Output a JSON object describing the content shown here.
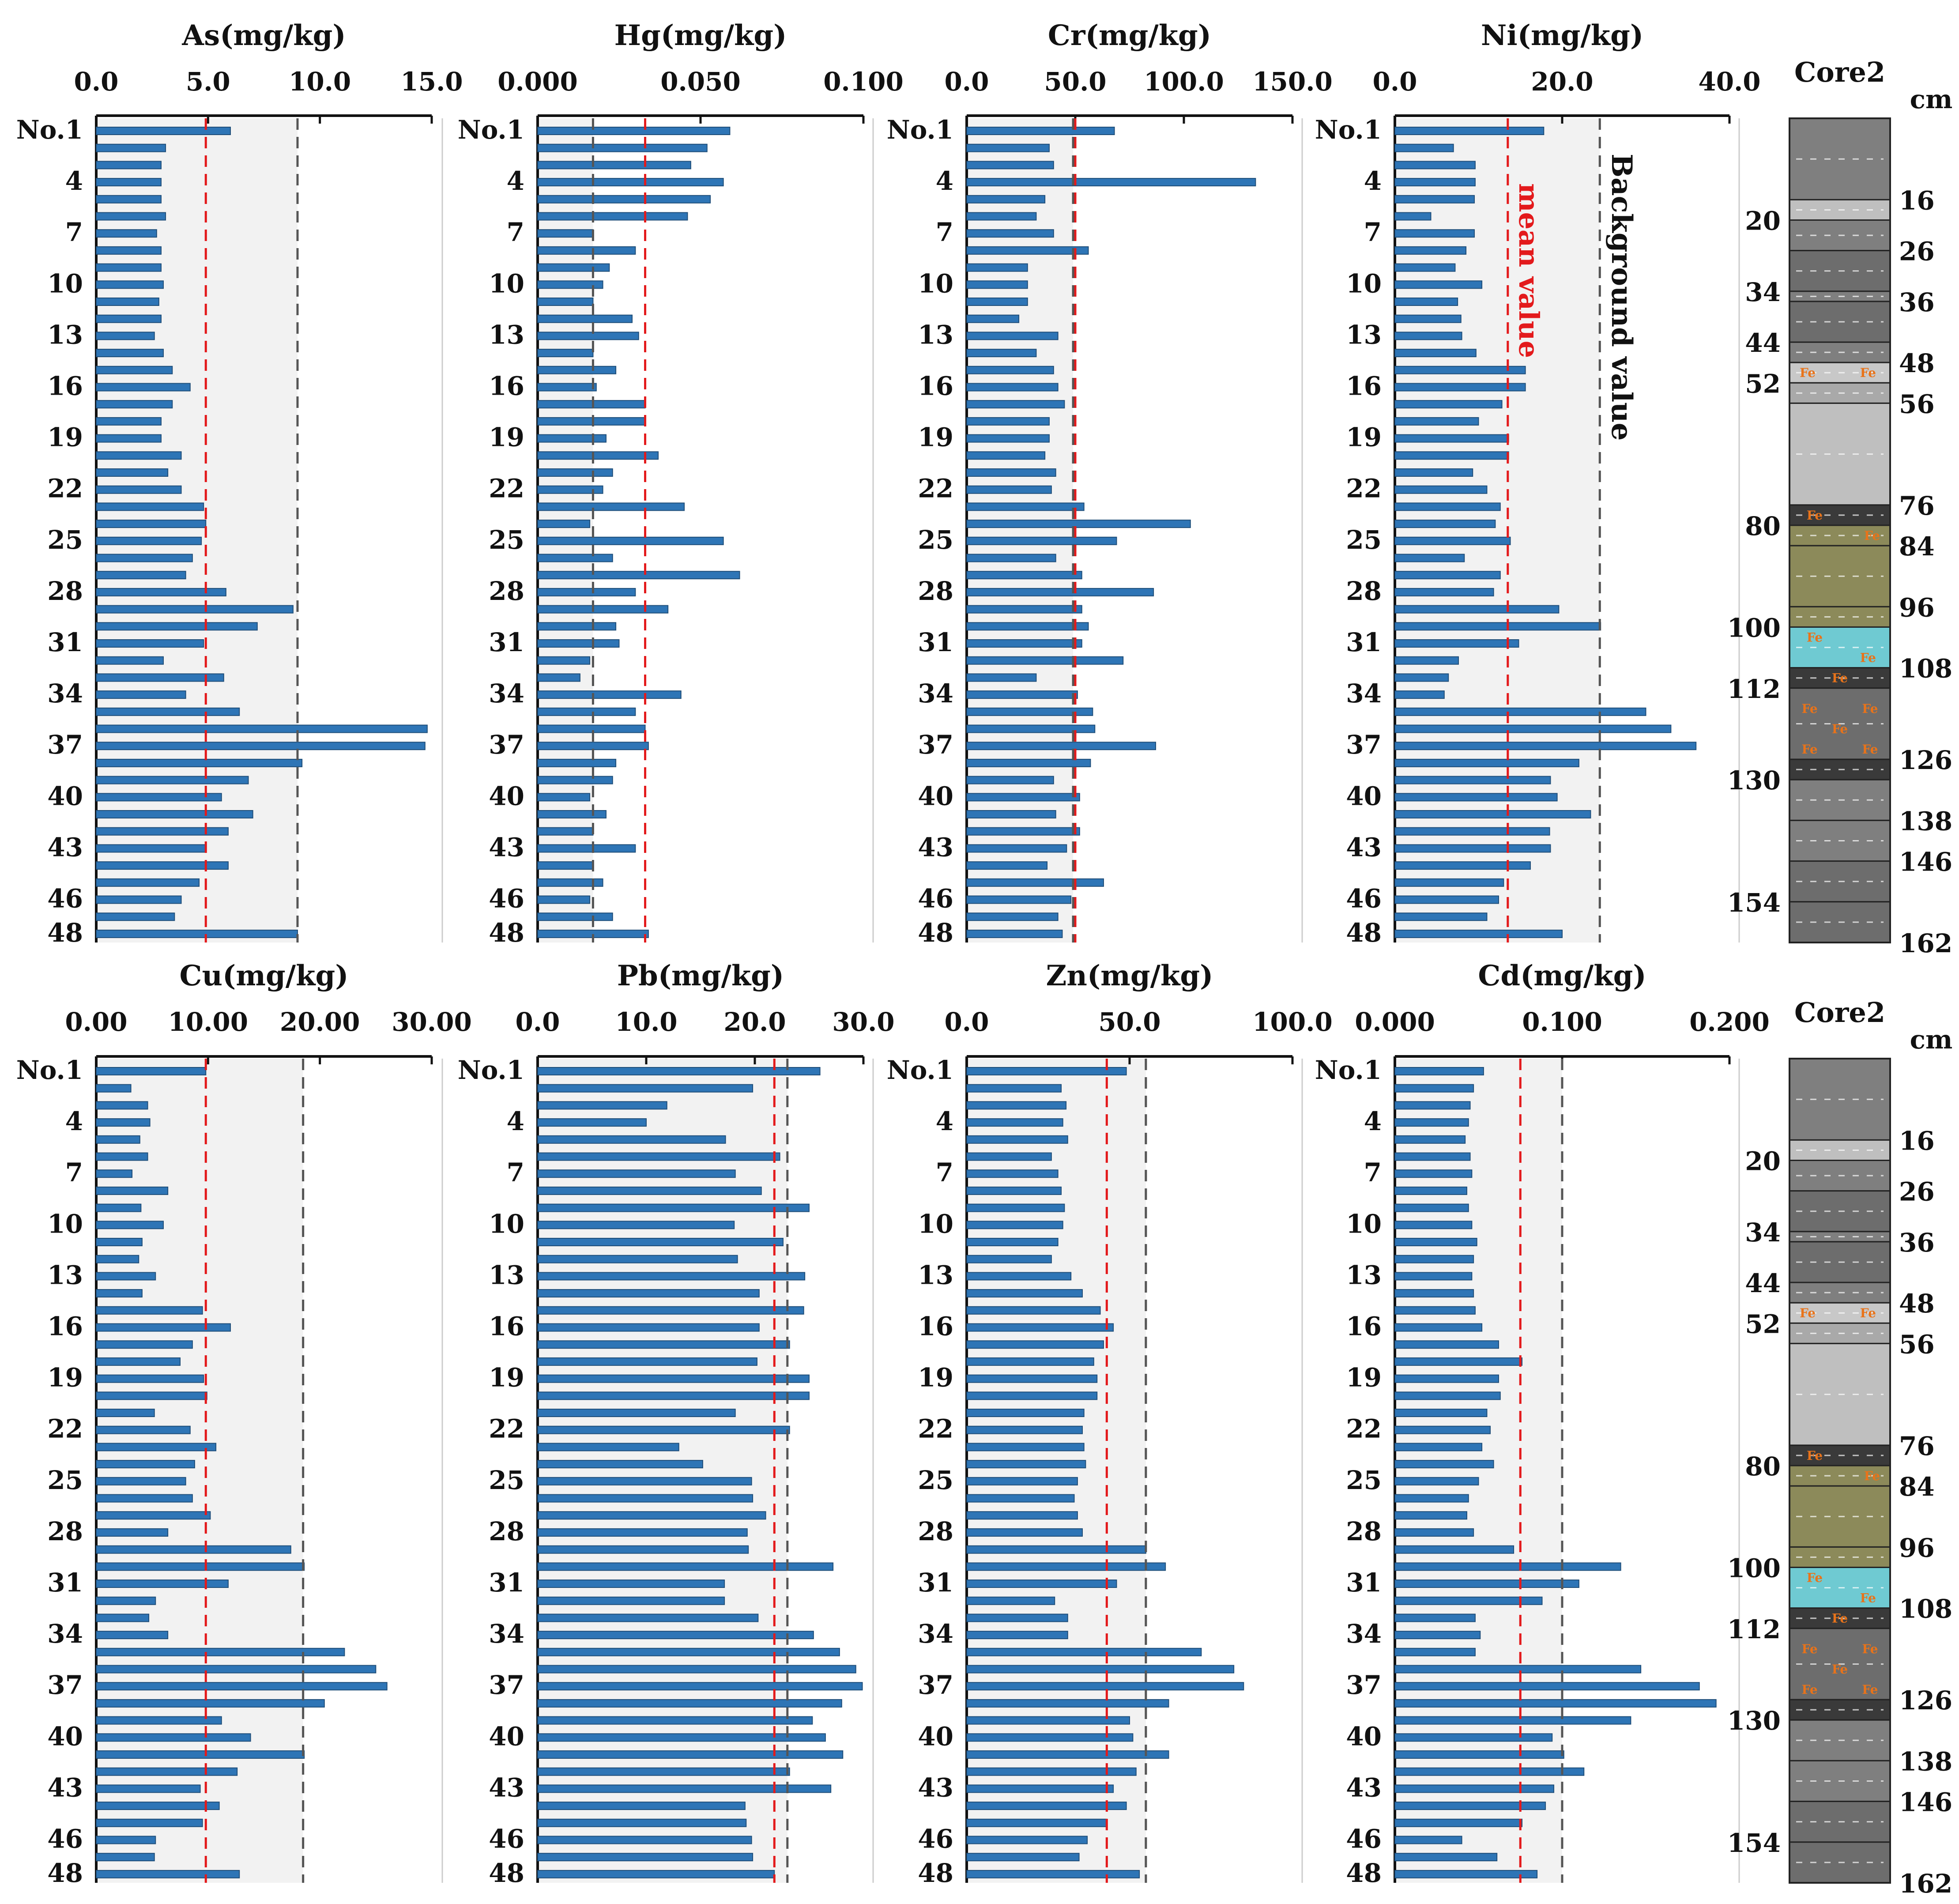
{
  "core_label": "Core2",
  "depth_unit": "cm",
  "mean_label": "mean value",
  "background_label": "Background value",
  "row_labels": [
    "No.1",
    "4",
    "7",
    "10",
    "13",
    "16",
    "19",
    "22",
    "25",
    "28",
    "31",
    "34",
    "37",
    "40",
    "43",
    "46",
    "48"
  ],
  "depth_labels_left": [
    "20",
    "34",
    "44",
    "52",
    "80",
    "100",
    "112",
    "130",
    "154"
  ],
  "depth_labels_right": [
    "16",
    "26",
    "36",
    "48",
    "56",
    "76",
    "84",
    "96",
    "108",
    "126",
    "138",
    "146",
    "162"
  ],
  "fe_label": "Fe",
  "colors": {
    "bar": "#2e75b6",
    "bar_dark": "#1f4e79",
    "panel_bg": "#f2f2f2",
    "mean_line": "#e31a1c",
    "background_line": "#555555",
    "fe_text": "#e8731a"
  },
  "chart_data": [
    {
      "type": "bar",
      "orientation": "horizontal",
      "title": "As(mg/kg)",
      "xlim": [
        0,
        15
      ],
      "ticks": [
        "0.0",
        "5.0",
        "10.0",
        "15.0"
      ],
      "mean": 4.9,
      "background": 9.0,
      "values": [
        6.0,
        3.1,
        2.9,
        2.9,
        2.9,
        3.1,
        2.7,
        2.9,
        2.9,
        3.0,
        2.8,
        2.9,
        2.6,
        3.0,
        3.4,
        4.2,
        3.4,
        2.9,
        2.9,
        3.8,
        3.2,
        3.8,
        4.8,
        4.9,
        4.7,
        4.3,
        4.0,
        5.8,
        8.8,
        7.2,
        4.8,
        3.0,
        5.7,
        4.0,
        6.4,
        14.8,
        14.7,
        9.2,
        6.8,
        5.6,
        7.0,
        5.9,
        4.9,
        5.9,
        4.6,
        3.8,
        3.5,
        9.0
      ]
    },
    {
      "type": "bar",
      "orientation": "horizontal",
      "title": "Hg(mg/kg)",
      "xlim": [
        0,
        0.1
      ],
      "ticks": [
        "0.000",
        "0.050",
        "0.100"
      ],
      "mean": 0.033,
      "background": 0.017,
      "values": [
        0.059,
        0.052,
        0.047,
        0.057,
        0.053,
        0.046,
        0.017,
        0.03,
        0.022,
        0.02,
        0.017,
        0.029,
        0.031,
        0.017,
        0.024,
        0.018,
        0.033,
        0.033,
        0.021,
        0.037,
        0.023,
        0.02,
        0.045,
        0.016,
        0.057,
        0.023,
        0.062,
        0.03,
        0.04,
        0.024,
        0.025,
        0.016,
        0.013,
        0.044,
        0.03,
        0.033,
        0.034,
        0.024,
        0.023,
        0.016,
        0.021,
        0.017,
        0.03,
        0.017,
        0.02,
        0.016,
        0.023,
        0.034
      ]
    },
    {
      "type": "bar",
      "orientation": "horizontal",
      "title": "Cr(mg/kg)",
      "xlim": [
        0,
        150
      ],
      "ticks": [
        "0.0",
        "50.0",
        "100.0",
        "150.0"
      ],
      "mean": 50.0,
      "background": 49.0,
      "values": [
        68.0,
        38.0,
        40.0,
        133.0,
        36.0,
        32.0,
        40.0,
        56.0,
        28.0,
        28.0,
        28.0,
        24.0,
        42.0,
        32.0,
        40.0,
        42.0,
        45.0,
        38.0,
        38.0,
        36.0,
        41.0,
        39.0,
        54.0,
        103.0,
        69.0,
        41.0,
        53.0,
        86.0,
        53.0,
        56.0,
        53.0,
        72.0,
        32.0,
        51.0,
        58.0,
        59.0,
        87.0,
        57.0,
        40.0,
        52.0,
        41.0,
        52.0,
        46.0,
        37.0,
        63.0,
        48.0,
        42.0,
        44.0
      ]
    },
    {
      "type": "bar",
      "orientation": "horizontal",
      "title": "Ni(mg/kg)",
      "xlim": [
        0,
        40
      ],
      "ticks": [
        "0.0",
        "20.0",
        "40.0"
      ],
      "mean": 13.5,
      "background": 24.5,
      "values": [
        17.8,
        7.0,
        9.6,
        9.6,
        9.5,
        4.3,
        9.5,
        8.5,
        7.2,
        10.4,
        7.5,
        7.9,
        8.0,
        9.7,
        15.6,
        15.6,
        12.8,
        10.0,
        13.6,
        13.6,
        9.3,
        11.0,
        12.6,
        12.0,
        13.8,
        8.3,
        12.6,
        11.8,
        19.6,
        24.6,
        14.8,
        7.6,
        6.4,
        5.9,
        30.0,
        33.0,
        36.0,
        22.0,
        18.6,
        19.4,
        23.4,
        18.5,
        18.6,
        16.2,
        13.0,
        12.4,
        11.0,
        20.0
      ]
    },
    {
      "type": "bar",
      "orientation": "horizontal",
      "title": "Cu(mg/kg)",
      "xlim": [
        0,
        30
      ],
      "ticks": [
        "0.00",
        "10.00",
        "20.00",
        "30.00"
      ],
      "mean": 9.8,
      "background": 18.5,
      "values": [
        9.8,
        3.1,
        4.6,
        4.8,
        3.9,
        4.6,
        3.2,
        6.4,
        4.0,
        6.0,
        4.1,
        3.8,
        5.3,
        4.1,
        9.5,
        12.0,
        8.6,
        7.5,
        9.6,
        9.9,
        5.2,
        8.4,
        10.7,
        8.8,
        8.0,
        8.6,
        10.2,
        6.4,
        17.4,
        18.6,
        11.8,
        5.3,
        4.7,
        6.4,
        22.2,
        25.0,
        26.0,
        20.4,
        11.2,
        13.8,
        18.6,
        12.6,
        9.3,
        11.0,
        9.5,
        5.3,
        5.2,
        12.8
      ]
    },
    {
      "type": "bar",
      "orientation": "horizontal",
      "title": "Pb(mg/kg)",
      "xlim": [
        0,
        30
      ],
      "ticks": [
        "0.0",
        "10.0",
        "20.0",
        "30.0"
      ],
      "mean": 21.8,
      "background": 23.0,
      "values": [
        26.0,
        19.8,
        11.9,
        10.0,
        17.3,
        22.3,
        18.2,
        20.6,
        25.0,
        18.1,
        22.6,
        18.4,
        24.6,
        20.4,
        24.5,
        20.4,
        23.2,
        20.2,
        25.0,
        25.0,
        18.2,
        23.2,
        13.0,
        15.2,
        19.7,
        19.8,
        21.0,
        19.3,
        19.4,
        27.2,
        17.2,
        17.2,
        20.3,
        25.4,
        27.8,
        29.3,
        29.9,
        28.0,
        25.3,
        26.5,
        28.1,
        23.2,
        27.0,
        19.1,
        19.2,
        19.7,
        19.8,
        21.8
      ]
    },
    {
      "type": "bar",
      "orientation": "horizontal",
      "title": "Zn(mg/kg)",
      "xlim": [
        0,
        100
      ],
      "ticks": [
        "0.0",
        "50.0",
        "100.0"
      ],
      "mean": 43.0,
      "background": 55.0,
      "values": [
        49.0,
        29.0,
        30.5,
        29.5,
        31.0,
        26.0,
        28.0,
        29.0,
        30.0,
        29.5,
        28.0,
        26.0,
        32.0,
        35.5,
        41.0,
        45.0,
        42.0,
        39.0,
        40.0,
        40.0,
        36.0,
        35.5,
        36.0,
        36.5,
        34.0,
        33.0,
        34.0,
        35.5,
        55.0,
        61.0,
        46.0,
        27.0,
        31.0,
        31.0,
        72.0,
        82.0,
        85.0,
        62.0,
        50.0,
        51.0,
        62.0,
        52.0,
        45.0,
        49.0,
        43.0,
        37.0,
        34.5,
        53.0
      ]
    },
    {
      "type": "bar",
      "orientation": "horizontal",
      "title": "Cd(mg/kg)",
      "xlim": [
        0,
        0.2
      ],
      "ticks": [
        "0.000",
        "0.100",
        "0.200"
      ],
      "mean": 0.075,
      "background": 0.1,
      "values": [
        0.053,
        0.047,
        0.045,
        0.044,
        0.042,
        0.045,
        0.046,
        0.043,
        0.044,
        0.046,
        0.049,
        0.047,
        0.046,
        0.047,
        0.048,
        0.052,
        0.062,
        0.076,
        0.062,
        0.063,
        0.055,
        0.057,
        0.052,
        0.059,
        0.05,
        0.044,
        0.043,
        0.047,
        0.071,
        0.135,
        0.11,
        0.088,
        0.048,
        0.051,
        0.048,
        0.147,
        0.182,
        0.192,
        0.141,
        0.094,
        0.101,
        0.113,
        0.095,
        0.09,
        0.076,
        0.04,
        0.061,
        0.085
      ]
    }
  ]
}
